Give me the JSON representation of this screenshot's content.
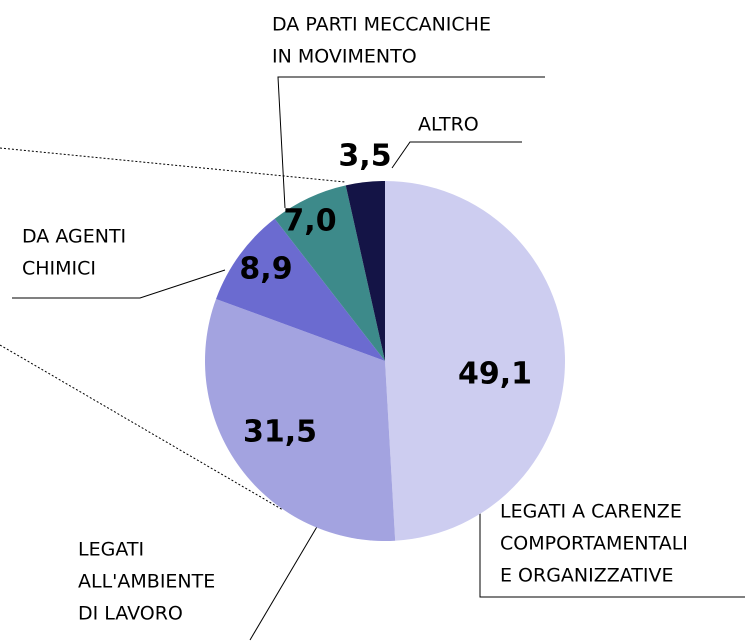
{
  "chart_data": {
    "type": "pie",
    "categories": [
      [
        "LEGATI A CARENZE",
        "COMPORTAMENTALI",
        "E ORGANIZZATIVE"
      ],
      [
        "LEGATI",
        "ALL'AMBIENTE",
        "DI LAVORO"
      ],
      [
        "DA AGENTI",
        "CHIMICI"
      ],
      [
        "DA PARTI MECCANICHE",
        "IN MOVIMENTO"
      ],
      [
        "ALTRO"
      ]
    ],
    "values": [
      49.1,
      31.5,
      8.9,
      7.0,
      3.5
    ],
    "value_labels": [
      "49,1",
      "31,5",
      "8,9",
      "7,0",
      "3,5"
    ],
    "colors": [
      "#cdcdf0",
      "#a3a3e0",
      "#6b6bd0",
      "#3d8a8a",
      "#141446"
    ]
  }
}
